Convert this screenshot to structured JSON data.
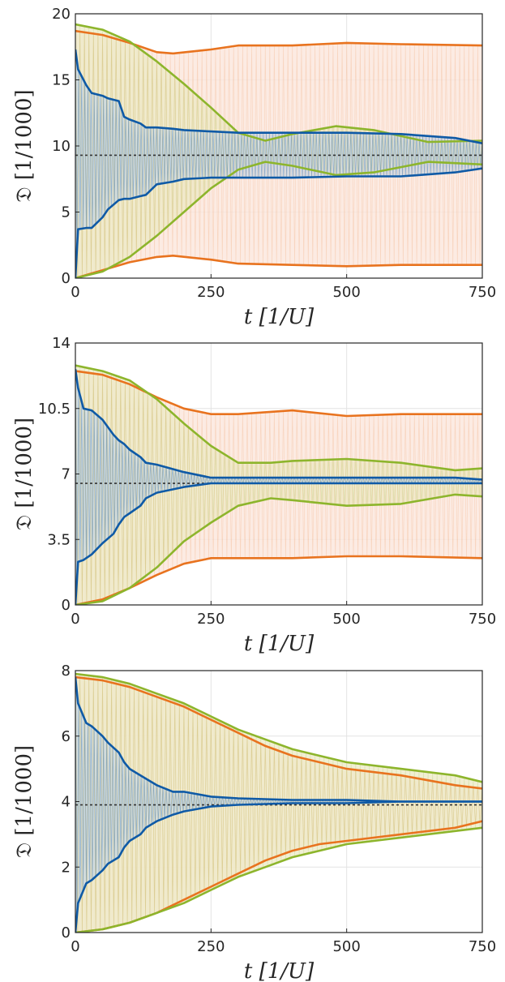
{
  "colors": {
    "orange": "#e8731f",
    "green": "#8db52c",
    "blue": "#0f5aa6",
    "orange_fill": "#fbe6dc",
    "green_fill": "#ece9c4",
    "blue_fill": "#c9d9e5"
  },
  "chart_data": [
    {
      "type": "line",
      "xlabel": "t [1/U]",
      "ylabel": "𝔇 [1/1000]",
      "xlim": [
        0,
        750
      ],
      "ylim": [
        0,
        20
      ],
      "xticks": [
        "0",
        "250",
        "500",
        "750"
      ],
      "yticks": [
        "0",
        "5",
        "10",
        "15",
        "20"
      ],
      "grid": true,
      "reference_value": 9.3,
      "series": [
        {
          "color_key": "orange",
          "x": [
            0,
            50,
            100,
            150,
            180,
            250,
            300,
            400,
            500,
            600,
            750
          ],
          "upper": [
            18.7,
            18.4,
            17.8,
            17.1,
            17.0,
            17.3,
            17.6,
            17.6,
            17.8,
            17.7,
            17.6
          ],
          "lower": [
            0,
            0.6,
            1.2,
            1.6,
            1.7,
            1.4,
            1.1,
            1.0,
            0.9,
            1.0,
            1.0
          ]
        },
        {
          "color_key": "green",
          "x": [
            0,
            50,
            100,
            150,
            200,
            250,
            300,
            350,
            400,
            480,
            550,
            650,
            750
          ],
          "upper": [
            19.2,
            18.8,
            17.9,
            16.4,
            14.7,
            12.9,
            11.0,
            10.4,
            10.9,
            11.5,
            11.2,
            10.3,
            10.4
          ],
          "lower": [
            0,
            0.5,
            1.6,
            3.2,
            5.0,
            6.8,
            8.2,
            8.8,
            8.5,
            7.8,
            8.0,
            8.8,
            8.6
          ]
        },
        {
          "color_key": "blue",
          "x": [
            0,
            5,
            20,
            30,
            50,
            60,
            80,
            90,
            100,
            120,
            130,
            150,
            180,
            200,
            250,
            300,
            400,
            500,
            600,
            700,
            750
          ],
          "upper": [
            17.3,
            15.8,
            14.6,
            14.0,
            13.8,
            13.6,
            13.4,
            12.2,
            12.0,
            11.7,
            11.4,
            11.4,
            11.3,
            11.2,
            11.1,
            11.0,
            11.0,
            11.0,
            10.9,
            10.6,
            10.2
          ],
          "lower": [
            0,
            3.7,
            3.8,
            3.8,
            4.6,
            5.2,
            5.9,
            6.0,
            6.0,
            6.2,
            6.3,
            7.1,
            7.3,
            7.5,
            7.6,
            7.6,
            7.6,
            7.7,
            7.7,
            8.0,
            8.3
          ]
        }
      ]
    },
    {
      "type": "line",
      "xlabel": "t [1/U]",
      "ylabel": "𝔇 [1/1000]",
      "xlim": [
        0,
        750
      ],
      "ylim": [
        0,
        14
      ],
      "xticks": [
        "0",
        "250",
        "500",
        "750"
      ],
      "yticks": [
        "0",
        "3.5",
        "7",
        "10.5",
        "14"
      ],
      "grid": true,
      "reference_value": 6.5,
      "series": [
        {
          "color_key": "orange",
          "x": [
            0,
            50,
            100,
            150,
            200,
            250,
            300,
            400,
            500,
            600,
            750
          ],
          "upper": [
            12.5,
            12.3,
            11.8,
            11.1,
            10.5,
            10.2,
            10.2,
            10.4,
            10.1,
            10.2,
            10.2
          ],
          "lower": [
            0,
            0.3,
            0.9,
            1.6,
            2.2,
            2.5,
            2.5,
            2.5,
            2.6,
            2.6,
            2.5
          ]
        },
        {
          "color_key": "green",
          "x": [
            0,
            50,
            100,
            150,
            200,
            250,
            300,
            360,
            400,
            500,
            600,
            700,
            750
          ],
          "upper": [
            12.8,
            12.5,
            12.0,
            11.0,
            9.7,
            8.5,
            7.6,
            7.6,
            7.7,
            7.8,
            7.6,
            7.2,
            7.3
          ],
          "lower": [
            0,
            0.2,
            0.9,
            2.0,
            3.4,
            4.4,
            5.3,
            5.7,
            5.6,
            5.3,
            5.4,
            5.9,
            5.8
          ]
        },
        {
          "color_key": "blue",
          "x": [
            0,
            5,
            15,
            30,
            50,
            70,
            80,
            90,
            100,
            120,
            130,
            150,
            200,
            250,
            300,
            400,
            500,
            600,
            700,
            750
          ],
          "upper": [
            12.6,
            11.6,
            10.5,
            10.4,
            9.9,
            9.1,
            8.8,
            8.6,
            8.3,
            7.9,
            7.6,
            7.5,
            7.1,
            6.8,
            6.8,
            6.8,
            6.8,
            6.8,
            6.8,
            6.7
          ],
          "lower": [
            0,
            2.3,
            2.4,
            2.7,
            3.3,
            3.8,
            4.3,
            4.7,
            4.9,
            5.3,
            5.7,
            6.0,
            6.3,
            6.5,
            6.5,
            6.5,
            6.5,
            6.5,
            6.5,
            6.5
          ]
        }
      ]
    },
    {
      "type": "line",
      "xlabel": "t [1/U]",
      "ylabel": "𝔇 [1/1000]",
      "xlim": [
        0,
        750
      ],
      "ylim": [
        0,
        8
      ],
      "xticks": [
        "0",
        "250",
        "500",
        "750"
      ],
      "yticks": [
        "0",
        "2",
        "4",
        "6",
        "8"
      ],
      "grid": true,
      "reference_value": 3.9,
      "series": [
        {
          "color_key": "orange",
          "x": [
            0,
            50,
            100,
            150,
            200,
            250,
            300,
            350,
            400,
            450,
            500,
            600,
            700,
            750
          ],
          "upper": [
            7.8,
            7.7,
            7.5,
            7.2,
            6.9,
            6.5,
            6.1,
            5.7,
            5.4,
            5.2,
            5.0,
            4.8,
            4.5,
            4.4
          ],
          "lower": [
            0,
            0.1,
            0.3,
            0.6,
            1.0,
            1.4,
            1.8,
            2.2,
            2.5,
            2.7,
            2.8,
            3.0,
            3.2,
            3.4
          ]
        },
        {
          "color_key": "green",
          "x": [
            0,
            50,
            100,
            150,
            200,
            250,
            300,
            350,
            400,
            450,
            500,
            600,
            700,
            750
          ],
          "upper": [
            7.9,
            7.8,
            7.6,
            7.3,
            7.0,
            6.6,
            6.2,
            5.9,
            5.6,
            5.4,
            5.2,
            5.0,
            4.8,
            4.6
          ],
          "lower": [
            0,
            0.1,
            0.3,
            0.6,
            0.9,
            1.3,
            1.7,
            2.0,
            2.3,
            2.5,
            2.7,
            2.9,
            3.1,
            3.2
          ]
        },
        {
          "color_key": "blue",
          "x": [
            0,
            5,
            20,
            30,
            50,
            60,
            80,
            90,
            100,
            120,
            130,
            150,
            180,
            200,
            250,
            300,
            400,
            500,
            600,
            750
          ],
          "upper": [
            7.8,
            7.0,
            6.4,
            6.3,
            6.0,
            5.8,
            5.5,
            5.2,
            5.0,
            4.8,
            4.7,
            4.5,
            4.3,
            4.3,
            4.15,
            4.1,
            4.05,
            4.05,
            4.0,
            4.0
          ],
          "lower": [
            0,
            0.9,
            1.5,
            1.6,
            1.9,
            2.1,
            2.3,
            2.6,
            2.8,
            3.0,
            3.2,
            3.4,
            3.6,
            3.7,
            3.85,
            3.9,
            3.95,
            3.95,
            4.0,
            4.0
          ]
        }
      ]
    }
  ]
}
